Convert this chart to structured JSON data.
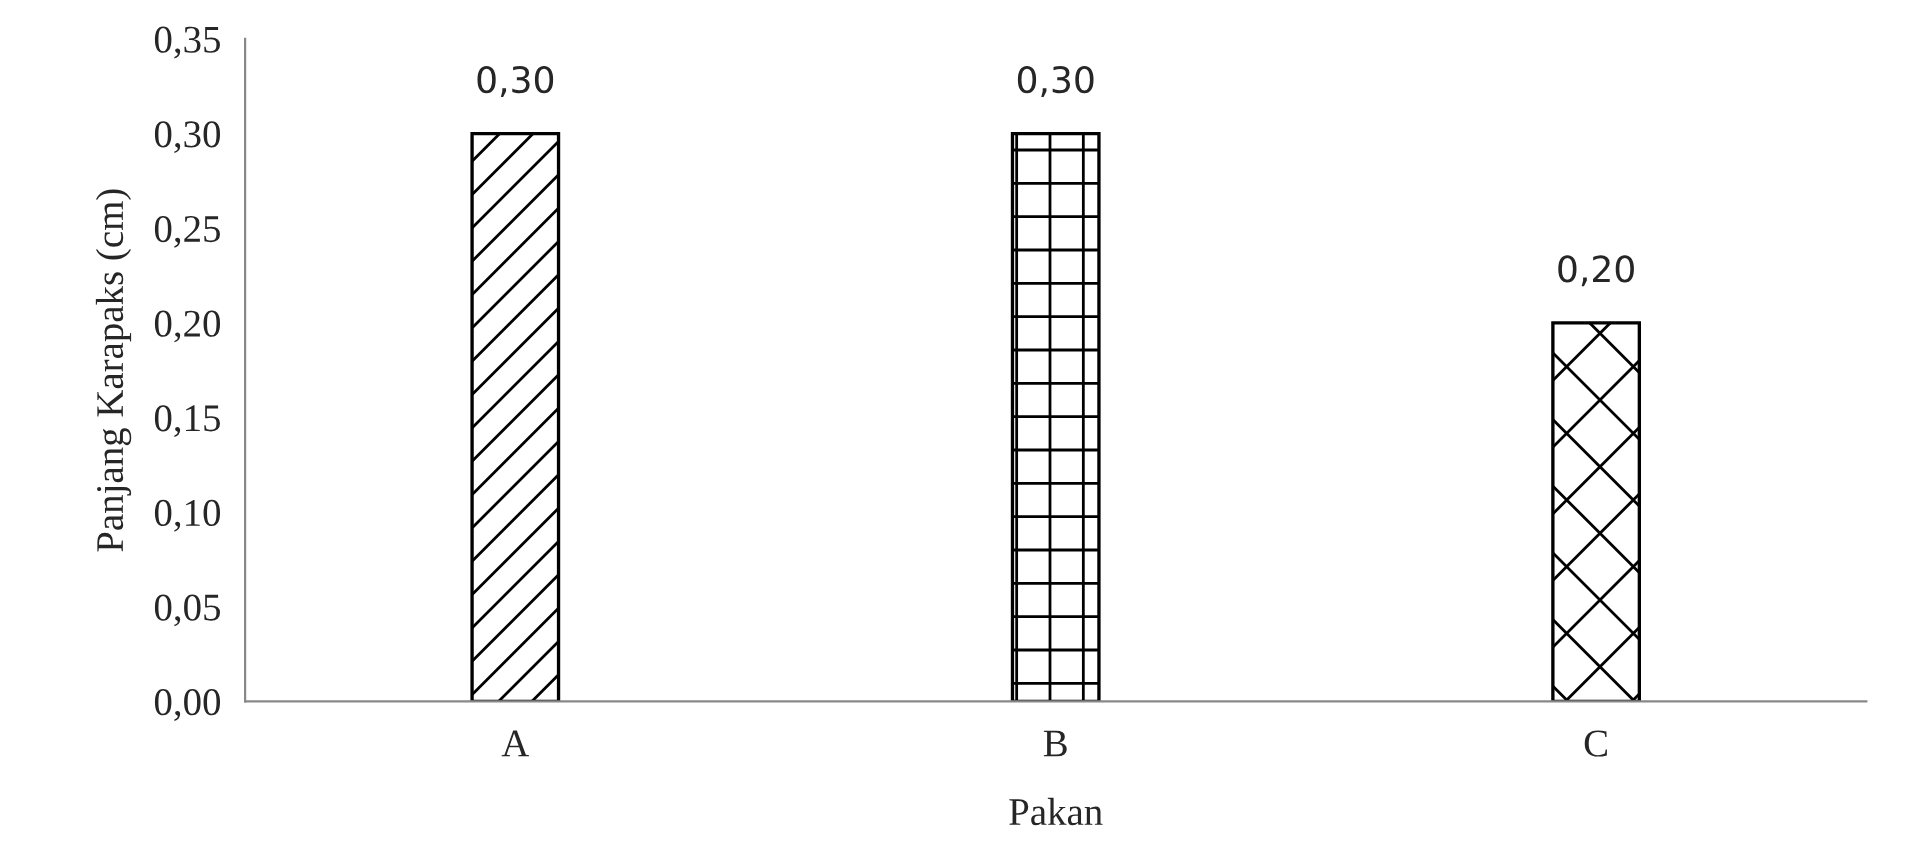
{
  "chart_data": {
    "type": "bar",
    "xlabel": "Pakan",
    "ylabel": "Panjang Karapaks (cm)",
    "categories": [
      "A",
      "B",
      "C"
    ],
    "values": [
      0.3,
      0.3,
      0.2
    ],
    "value_labels": [
      "0,30",
      "0,30",
      "0,20"
    ],
    "colors": [
      "#ffffff",
      "#ffffff",
      "#ffffff"
    ],
    "ylim": [
      0,
      0.35
    ],
    "yticks": [
      {
        "value": 0,
        "label": "0,00"
      },
      {
        "value": 0.05,
        "label": "0,05"
      },
      {
        "value": 0.1,
        "label": "0,10"
      },
      {
        "value": 0.15,
        "label": "0,15"
      },
      {
        "value": 0.2,
        "label": "0,20"
      },
      {
        "value": 0.25,
        "label": "0,25"
      },
      {
        "value": 0.3,
        "label": "0,30"
      },
      {
        "value": 0.35,
        "label": "0,35"
      }
    ],
    "grid": false
  }
}
